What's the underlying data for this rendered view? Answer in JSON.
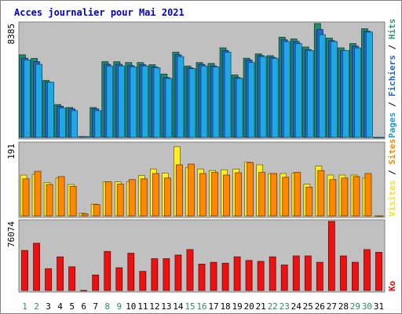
{
  "chart_data": {
    "type": "bar",
    "title": "Acces journalier pour Mai 2021",
    "categories": [
      "1",
      "2",
      "3",
      "4",
      "5",
      "6",
      "7",
      "8",
      "9",
      "10",
      "11",
      "12",
      "13",
      "14",
      "15",
      "16",
      "17",
      "18",
      "19",
      "20",
      "21",
      "22",
      "23",
      "24",
      "25",
      "26",
      "27",
      "28",
      "29",
      "30",
      "31"
    ],
    "weekend_days": [
      "1",
      "2",
      "8",
      "9",
      "15",
      "16",
      "22",
      "23",
      "29",
      "30"
    ],
    "panels": [
      {
        "name": "pages-fichiers-hits",
        "ymax_label": "8385",
        "ylim": [
          0,
          8385
        ],
        "legend": [
          {
            "text": "Pages",
            "color": "#2299dd"
          },
          {
            "text": " / ",
            "color": "#000000"
          },
          {
            "text": "Fichiers",
            "color": "#2266cc"
          },
          {
            "text": " / ",
            "color": "#000000"
          },
          {
            "text": "Hits",
            "color": "#339977"
          }
        ],
        "series": [
          {
            "name": "Hits",
            "color": "#1e8a6e",
            "values": [
              6082,
              5810,
              4195,
              2418,
              2199,
              0,
              2199,
              5574,
              5574,
              5510,
              5510,
              5351,
              4664,
              6273,
              5256,
              5510,
              5447,
              6591,
              4600,
              5828,
              6146,
              6018,
              7377,
              7249,
              6655,
              8385,
              7314,
              6591,
              6909,
              8003,
              0
            ]
          },
          {
            "name": "Fichiers",
            "color": "#2266cc",
            "values": [
              5828,
              5574,
              4068,
              2290,
              2100,
              0,
              2100,
              5383,
              5383,
              5288,
              5351,
              5192,
              4409,
              6082,
              5129,
              5383,
              5256,
              6400,
              4409,
              5701,
              6019,
              5892,
              7186,
              7059,
              6464,
              7949,
              7122,
              6400,
              6718,
              7821,
              0
            ]
          },
          {
            "name": "Pages",
            "color": "#1ea8e6",
            "values": [
              5701,
              5383,
              4068,
              2163,
              1972,
              0,
              1972,
              5256,
              5256,
              5192,
              5256,
              5129,
              4346,
              5955,
              5065,
              5256,
              5192,
              6273,
              4346,
              5510,
              5955,
              5828,
              7059,
              6909,
              6400,
              7568,
              7059,
              6400,
              6591,
              7759,
              0
            ]
          }
        ]
      },
      {
        "name": "visites-sites",
        "ymax_label": "191",
        "ylim": [
          0,
          191
        ],
        "legend": [
          {
            "text": "Visites",
            "color": "#ffdd22"
          },
          {
            "text": " / ",
            "color": "#000000"
          },
          {
            "text": "Sites",
            "color": "#ff8800"
          }
        ],
        "series": [
          {
            "name": "Visites",
            "color": "#ffee22",
            "values": [
              108,
              110,
              88,
              100,
              83,
              7,
              31,
              90,
              90,
              90,
              107,
              124,
              113,
              183,
              128,
              124,
              120,
              122,
              124,
              142,
              135,
              112,
              112,
              113,
              84,
              132,
              108,
              108,
              108,
              100,
              0
            ]
          },
          {
            "name": "Sites",
            "color": "#ff8800",
            "values": [
              98,
              118,
              83,
              104,
              78,
              5,
              30,
              90,
              84,
              96,
              98,
              112,
              100,
              135,
              137,
              112,
              115,
              108,
              114,
              141,
              115,
              112,
              102,
              115,
              76,
              120,
              96,
              100,
              104,
              112,
              0
            ]
          }
        ]
      },
      {
        "name": "ko",
        "ymax_label": "76074",
        "ylim": [
          0,
          76074
        ],
        "legend": [
          {
            "text": "Ko",
            "color": "#ff0000"
          }
        ],
        "series": [
          {
            "name": "Ko",
            "color": "#ee1111",
            "values": [
              44000,
              52000,
              24000,
              37000,
              26000,
              0,
              17000,
              43000,
              25000,
              41000,
              21000,
              35000,
              35000,
              39000,
              45000,
              29000,
              31000,
              30000,
              37000,
              33000,
              32000,
              37000,
              28000,
              38000,
              38000,
              31000,
              76074,
              38000,
              31000,
              45000,
              42000
            ]
          }
        ]
      }
    ]
  }
}
